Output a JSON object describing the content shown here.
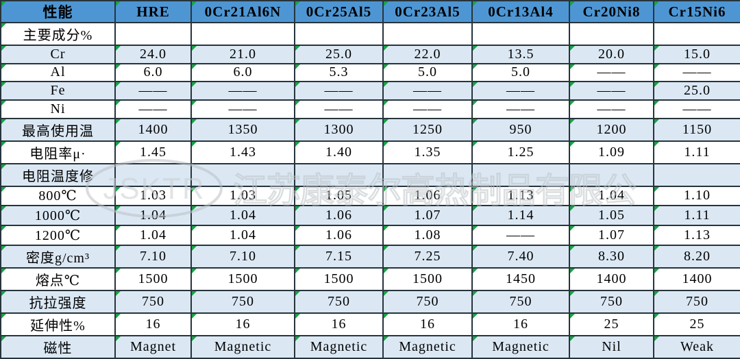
{
  "table": {
    "header": [
      "性能",
      "HRE",
      "0Cr21Al6N",
      "0Cr25Al5",
      "0Cr23Al5",
      "0Cr13Al4",
      "Cr20Ni8",
      "Cr15Ni6"
    ],
    "rows": [
      {
        "label": "主要成分%",
        "values": [
          "",
          "",
          "",
          "",
          "",
          "",
          ""
        ]
      },
      {
        "label": "Cr",
        "values": [
          "24.0",
          "21.0",
          "25.0",
          "22.0",
          "13.5",
          "20.0",
          "15.0"
        ]
      },
      {
        "label": "Al",
        "values": [
          "6.0",
          "6.0",
          "5.3",
          "5.0",
          "5.0",
          "——",
          "——"
        ]
      },
      {
        "label": "Fe",
        "values": [
          "——",
          "——",
          "——",
          "——",
          "——",
          "——",
          "25.0"
        ]
      },
      {
        "label": "Ni",
        "values": [
          "——",
          "——",
          "——",
          "——",
          "——",
          "——",
          "——"
        ]
      },
      {
        "label": "最高使用温",
        "values": [
          "1400",
          "1350",
          "1300",
          "1250",
          "950",
          "1200",
          "1150"
        ]
      },
      {
        "label": "电阻率μ·",
        "values": [
          "1.45",
          "1.43",
          "1.40",
          "1.35",
          "1.25",
          "1.09",
          "1.11"
        ]
      },
      {
        "label": "电阻温度修",
        "values": [
          "",
          "",
          "",
          "",
          "",
          "",
          ""
        ]
      },
      {
        "label": "800℃",
        "values": [
          "1.03",
          "1.03",
          "1.05",
          "1.06",
          "1.13",
          "1.04",
          "1.10"
        ]
      },
      {
        "label": "1000℃",
        "values": [
          "1.04",
          "1.04",
          "1.06",
          "1.07",
          "1.14",
          "1.05",
          "1.11"
        ]
      },
      {
        "label": "1200℃",
        "values": [
          "1.04",
          "1.04",
          "1.06",
          "1.08",
          "——",
          "1.07",
          "1.13"
        ]
      },
      {
        "label": "密度g/cm³",
        "values": [
          "7.10",
          "7.10",
          "7.15",
          "7.25",
          "7.40",
          "8.30",
          "8.20"
        ]
      },
      {
        "label": "熔点℃",
        "values": [
          "1500",
          "1500",
          "1500",
          "1500",
          "1450",
          "1400",
          "1400"
        ]
      },
      {
        "label": "抗拉强度",
        "values": [
          "750",
          "750",
          "750",
          "750",
          "750",
          "750",
          "750"
        ]
      },
      {
        "label": "延伸性%",
        "values": [
          "16",
          "16",
          "16",
          "16",
          "16",
          "25",
          "25"
        ]
      },
      {
        "label": "磁性",
        "values": [
          "Magnet",
          "Magnetic",
          "Magnetic",
          "Magnetic",
          "Magnetic",
          "Nil",
          "Weak"
        ]
      }
    ]
  },
  "watermark": {
    "logo": "JSKTR",
    "company": "江苏康泰尔高热制品有限公司"
  },
  "colors": {
    "header_bg": "#4e96d3",
    "row_alt": "#dbe8f4",
    "border": "#26343c",
    "triangle_indicator": "#17a344",
    "watermark_grey": "#c3c8cc"
  }
}
